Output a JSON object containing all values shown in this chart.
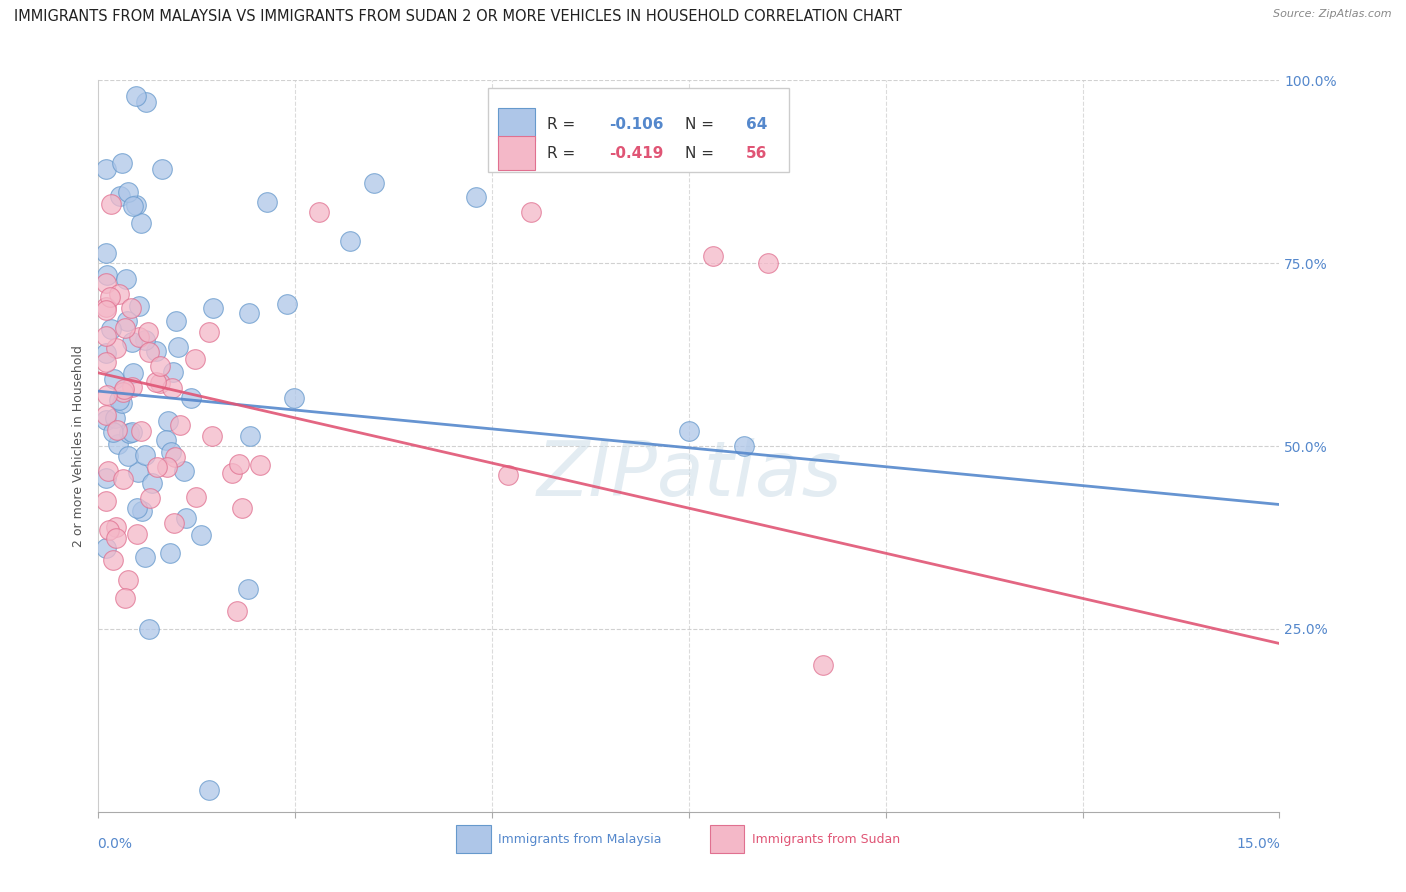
{
  "title": "IMMIGRANTS FROM MALAYSIA VS IMMIGRANTS FROM SUDAN 2 OR MORE VEHICLES IN HOUSEHOLD CORRELATION CHART",
  "source": "Source: ZipAtlas.com",
  "ylabel": "2 or more Vehicles in Household",
  "legend1_r": "-0.106",
  "legend1_n": "64",
  "legend2_r": "-0.419",
  "legend2_n": "56",
  "legend1_label": "Immigrants from Malaysia",
  "legend2_label": "Immigrants from Sudan",
  "color_malaysia_fill": "#aec6e8",
  "color_malaysia_edge": "#6699cc",
  "color_sudan_fill": "#f4b8c8",
  "color_sudan_edge": "#e07090",
  "color_line_malaysia": "#5588cc",
  "color_line_sudan": "#e05575",
  "watermark": "ZIPatlas",
  "xlim": [
    0.0,
    0.15
  ],
  "ylim": [
    0.0,
    1.0
  ],
  "title_fontsize": 10.5,
  "axis_label_fontsize": 9,
  "tick_fontsize": 9,
  "legend_fontsize": 11,
  "watermark_fontsize": 55,
  "background_color": "#ffffff",
  "grid_color": "#cccccc",
  "ytick_color": "#5588cc",
  "xtick_color": "#5588cc"
}
